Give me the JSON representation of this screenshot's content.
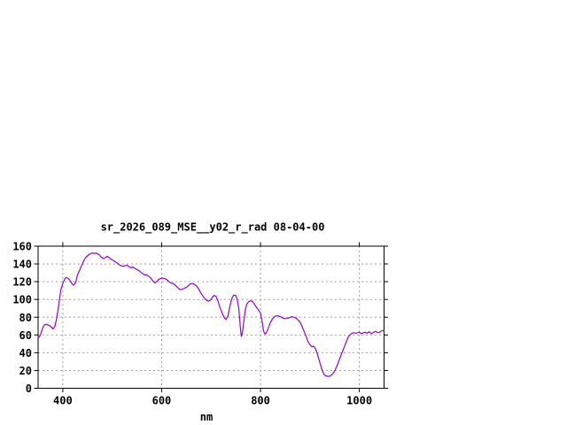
{
  "window": {
    "background_color": "#ffffff"
  },
  "chart_data": {
    "type": "line",
    "title": "sr_2026_089_MSE__y02_r_rad 08-04-00",
    "xlabel": "nm",
    "ylabel": "",
    "xlim": [
      350,
      1050
    ],
    "ylim": [
      0,
      160
    ],
    "xticks": [
      "400",
      "600",
      "800",
      "1000"
    ],
    "xtick_values": [
      400,
      600,
      800,
      1000
    ],
    "yticks": [
      "0",
      "20",
      "40",
      "60",
      "80",
      "100",
      "120",
      "140",
      "160"
    ],
    "ytick_values": [
      0,
      20,
      40,
      60,
      80,
      100,
      120,
      140,
      160
    ],
    "grid": "dashed",
    "legend_position": "none",
    "line_color": "#9400d3",
    "grid_color": "#a0a0a0",
    "axis_color": "#000000",
    "series": [
      {
        "points": [
          [
            350,
            57
          ],
          [
            353,
            58
          ],
          [
            356,
            62
          ],
          [
            360,
            69
          ],
          [
            363,
            71.5
          ],
          [
            367,
            72
          ],
          [
            371,
            71
          ],
          [
            375,
            70
          ],
          [
            378,
            68
          ],
          [
            381,
            67
          ],
          [
            384,
            70
          ],
          [
            387,
            77
          ],
          [
            390,
            87
          ],
          [
            393,
            99
          ],
          [
            396,
            111
          ],
          [
            400,
            118
          ],
          [
            403,
            122
          ],
          [
            406,
            124.5
          ],
          [
            410,
            124
          ],
          [
            414,
            122
          ],
          [
            418,
            118
          ],
          [
            422,
            116
          ],
          [
            426,
            119
          ],
          [
            430,
            128
          ],
          [
            434,
            133
          ],
          [
            438,
            138
          ],
          [
            442,
            143
          ],
          [
            446,
            147
          ],
          [
            450,
            149
          ],
          [
            454,
            151
          ],
          [
            458,
            152
          ],
          [
            463,
            152
          ],
          [
            467,
            152
          ],
          [
            470,
            151.5
          ],
          [
            474,
            150
          ],
          [
            478,
            147.5
          ],
          [
            482,
            146
          ],
          [
            486,
            147
          ],
          [
            490,
            148.5
          ],
          [
            494,
            147
          ],
          [
            498,
            145
          ],
          [
            502,
            144
          ],
          [
            506,
            142.5
          ],
          [
            510,
            141
          ],
          [
            514,
            139
          ],
          [
            518,
            138
          ],
          [
            522,
            137.5
          ],
          [
            526,
            138
          ],
          [
            530,
            138.5
          ],
          [
            534,
            137
          ],
          [
            538,
            135.5
          ],
          [
            542,
            136.5
          ],
          [
            546,
            135
          ],
          [
            550,
            133.5
          ],
          [
            554,
            132.5
          ],
          [
            558,
            130.5
          ],
          [
            562,
            129
          ],
          [
            566,
            127.5
          ],
          [
            570,
            127.5
          ],
          [
            574,
            126
          ],
          [
            578,
            124
          ],
          [
            582,
            121
          ],
          [
            586,
            118.5
          ],
          [
            590,
            120
          ],
          [
            594,
            122.5
          ],
          [
            598,
            123.5
          ],
          [
            602,
            124
          ],
          [
            606,
            123.5
          ],
          [
            610,
            122.5
          ],
          [
            614,
            120.5
          ],
          [
            618,
            118.5
          ],
          [
            622,
            118
          ],
          [
            626,
            117
          ],
          [
            630,
            114.5
          ],
          [
            634,
            112.5
          ],
          [
            638,
            111
          ],
          [
            642,
            111.5
          ],
          [
            646,
            112.5
          ],
          [
            650,
            113.5
          ],
          [
            654,
            115.5
          ],
          [
            658,
            117.5
          ],
          [
            662,
            118
          ],
          [
            666,
            117
          ],
          [
            670,
            115.5
          ],
          [
            674,
            112.5
          ],
          [
            678,
            108.5
          ],
          [
            682,
            105
          ],
          [
            686,
            102
          ],
          [
            690,
            99.5
          ],
          [
            694,
            98
          ],
          [
            698,
            99
          ],
          [
            702,
            102
          ],
          [
            706,
            104.5
          ],
          [
            710,
            103.5
          ],
          [
            714,
            98
          ],
          [
            718,
            91
          ],
          [
            722,
            85
          ],
          [
            726,
            80
          ],
          [
            730,
            77.5
          ],
          [
            734,
            81
          ],
          [
            738,
            92
          ],
          [
            742,
            101
          ],
          [
            746,
            105
          ],
          [
            750,
            104.5
          ],
          [
            753,
            100
          ],
          [
            756,
            90
          ],
          [
            759,
            70
          ],
          [
            761,
            58.5
          ],
          [
            763,
            61
          ],
          [
            766,
            74
          ],
          [
            769,
            87
          ],
          [
            772,
            94.5
          ],
          [
            776,
            97.5
          ],
          [
            780,
            98.5
          ],
          [
            784,
            97.5
          ],
          [
            788,
            94.5
          ],
          [
            792,
            91
          ],
          [
            796,
            88
          ],
          [
            800,
            84.5
          ],
          [
            803,
            76
          ],
          [
            806,
            65
          ],
          [
            809,
            61
          ],
          [
            812,
            62.5
          ],
          [
            816,
            68
          ],
          [
            820,
            74
          ],
          [
            824,
            78
          ],
          [
            828,
            80.5
          ],
          [
            832,
            81.5
          ],
          [
            836,
            81.5
          ],
          [
            840,
            80.5
          ],
          [
            844,
            79.5
          ],
          [
            848,
            78.5
          ],
          [
            852,
            78.5
          ],
          [
            856,
            79
          ],
          [
            860,
            80
          ],
          [
            864,
            80.5
          ],
          [
            868,
            80
          ],
          [
            872,
            79
          ],
          [
            876,
            77
          ],
          [
            880,
            74.5
          ],
          [
            884,
            70
          ],
          [
            888,
            64.5
          ],
          [
            892,
            58.5
          ],
          [
            896,
            52.5
          ],
          [
            900,
            49
          ],
          [
            904,
            46.5
          ],
          [
            907,
            47.5
          ],
          [
            910,
            46
          ],
          [
            913,
            42
          ],
          [
            916,
            37
          ],
          [
            920,
            29
          ],
          [
            924,
            21.5
          ],
          [
            928,
            16
          ],
          [
            932,
            14
          ],
          [
            936,
            13.5
          ],
          [
            940,
            13.5
          ],
          [
            944,
            15
          ],
          [
            948,
            17.5
          ],
          [
            952,
            21.5
          ],
          [
            956,
            27
          ],
          [
            960,
            33
          ],
          [
            964,
            39
          ],
          [
            968,
            44.5
          ],
          [
            972,
            50
          ],
          [
            976,
            55.5
          ],
          [
            980,
            59.5
          ],
          [
            984,
            61.5
          ],
          [
            988,
            62.5
          ],
          [
            992,
            62
          ],
          [
            996,
            62.5
          ],
          [
            1000,
            63
          ],
          [
            1004,
            61.5
          ],
          [
            1008,
            62.5
          ],
          [
            1012,
            63
          ],
          [
            1016,
            62
          ],
          [
            1020,
            63.5
          ],
          [
            1024,
            61.5
          ],
          [
            1028,
            62.5
          ],
          [
            1032,
            64
          ],
          [
            1036,
            63
          ],
          [
            1040,
            62.5
          ],
          [
            1044,
            64.5
          ],
          [
            1048,
            65
          ],
          [
            1050,
            64.5
          ]
        ]
      }
    ]
  }
}
